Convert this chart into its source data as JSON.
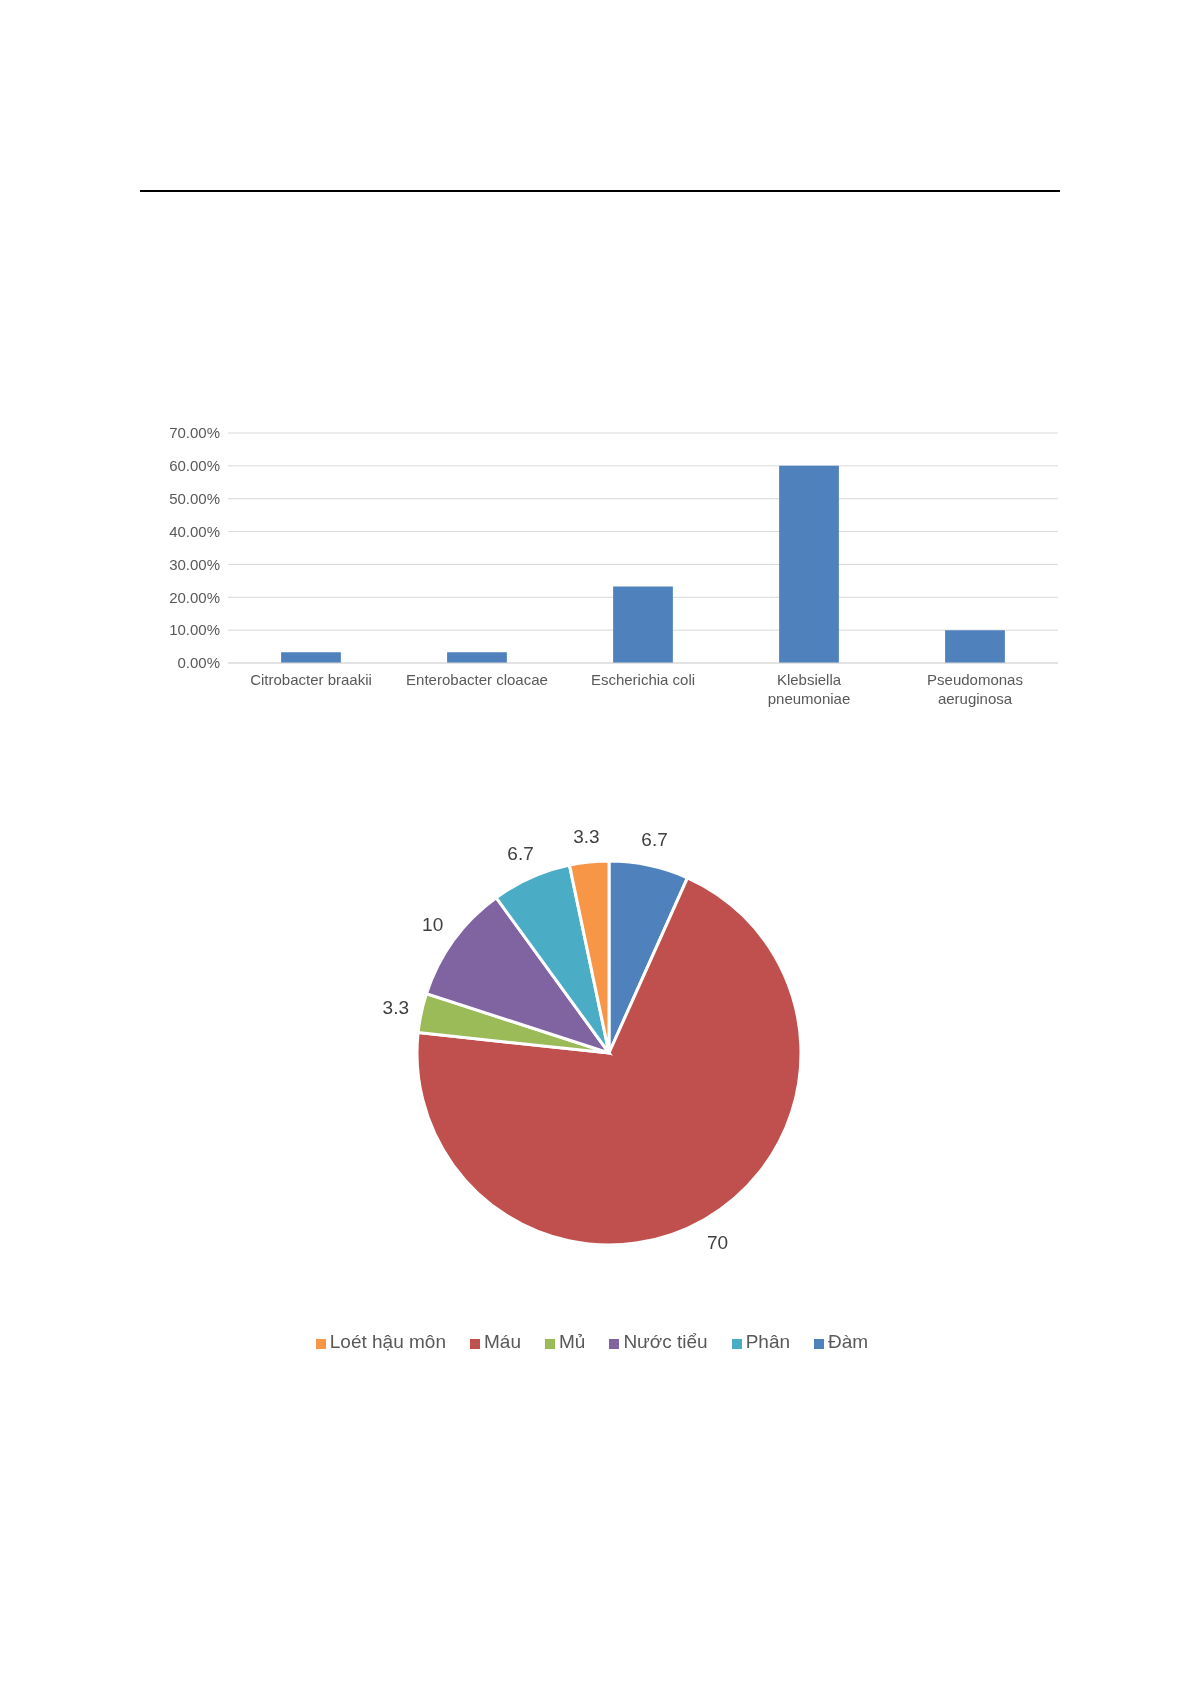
{
  "chart_data": [
    {
      "type": "bar",
      "categories": [
        "Citrobacter braakii",
        "Enterobacter cloacae",
        "Escherichia coli",
        "Klebsiella pneumoniae",
        "Pseudomonas aeruginosa"
      ],
      "values": [
        3.3,
        3.3,
        23.3,
        60,
        10
      ],
      "color": "#4f81bd",
      "ylim": [
        0,
        70
      ],
      "yticks": [
        {
          "value": 0,
          "label": "0.00%"
        },
        {
          "value": 10,
          "label": "10.00%"
        },
        {
          "value": 20,
          "label": "20.00%"
        },
        {
          "value": 30,
          "label": "30.00%"
        },
        {
          "value": 40,
          "label": "40.00%"
        },
        {
          "value": 50,
          "label": "50.00%"
        },
        {
          "value": 60,
          "label": "60.00%"
        },
        {
          "value": 70,
          "label": "70.00%"
        }
      ],
      "grid": "y"
    },
    {
      "type": "pie",
      "categories": [
        "Đàm",
        "Máu",
        "Mủ",
        "Nước tiểu",
        "Phân",
        "Loét hậu môn"
      ],
      "values": [
        6.7,
        70,
        3.3,
        10,
        6.7,
        3.3
      ],
      "colors": [
        "#4f81bd",
        "#c0504d",
        "#9bbb59",
        "#8064a2",
        "#4bacc6",
        "#f79646"
      ],
      "data_labels": true,
      "legend": "bottom"
    }
  ]
}
